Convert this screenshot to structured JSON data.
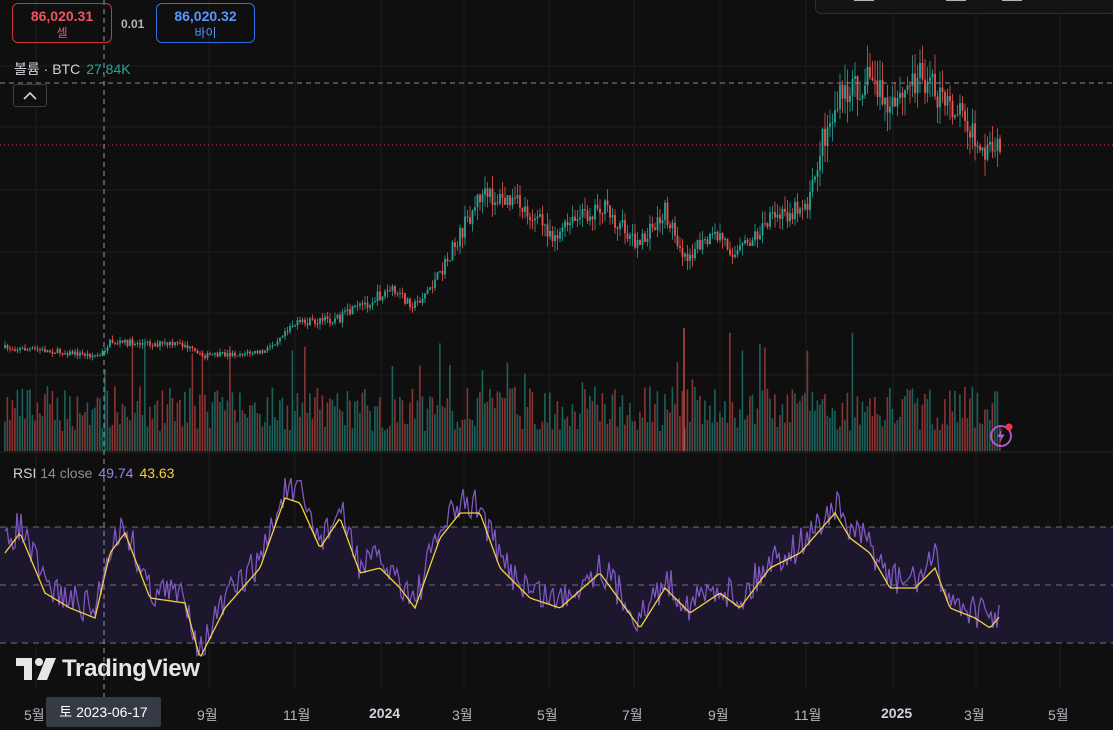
{
  "order": {
    "sell_price": "86,020.31",
    "sell_label": "셀",
    "spread": "0.01",
    "buy_price": "86,020.32",
    "buy_label": "바이"
  },
  "volume_legend": {
    "label": "볼륨 · BTC",
    "value": "27.84K"
  },
  "rsi_legend": {
    "name": "RSI",
    "params": "14 close",
    "rsi_value": "49.74",
    "ma_value": "43.63"
  },
  "branding": {
    "logo_text": "TradingView"
  },
  "crosshair": {
    "date_label": "토  2023-06-17"
  },
  "x_axis": {
    "labels": [
      {
        "text": "5월",
        "bold": false
      },
      {
        "text": "9월",
        "bold": false
      },
      {
        "text": "11월",
        "bold": false
      },
      {
        "text": "2024",
        "bold": true
      },
      {
        "text": "3월",
        "bold": false
      },
      {
        "text": "5월",
        "bold": false
      },
      {
        "text": "7월",
        "bold": false
      },
      {
        "text": "9월",
        "bold": false
      },
      {
        "text": "11월",
        "bold": false
      },
      {
        "text": "2025",
        "bold": true
      },
      {
        "text": "3월",
        "bold": false
      },
      {
        "text": "5월",
        "bold": false
      }
    ]
  },
  "colors": {
    "up": "#26a69a",
    "down": "#ef5350",
    "rsi": "#7e57c2",
    "rsi_ma": "#f2d33e",
    "rsi_band": "#1e1830",
    "grid": "#1c1c1c",
    "price_line": "#f23645"
  },
  "icons": {
    "collapse": "chevron-up-icon",
    "alert": "lightning-alert-icon",
    "logo": "tradingview-logo-icon"
  }
}
